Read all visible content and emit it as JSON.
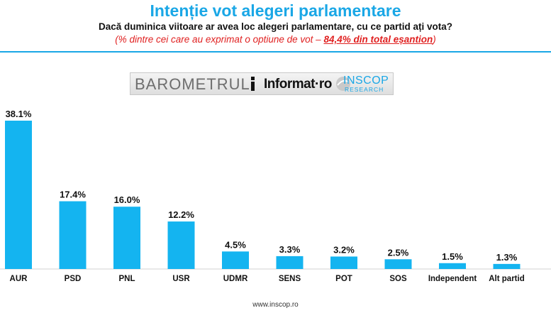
{
  "header": {
    "title": "Intenție vot alegeri parlamentare",
    "subtitle": "Dacă duminica viitoare ar avea loc alegeri parlamentare, cu ce partid ați vota?",
    "note_prefix": "(% dintre cei care au exprimat o optiune de vot – ",
    "note_emphasis": "84,4% din total eșantion",
    "note_suffix": ")"
  },
  "banner": {
    "barometru": "BAROMETRUL",
    "informat": "Informat·ro",
    "inscop_name": "INSCOP",
    "inscop_sub": "RESEARCH"
  },
  "footer": {
    "url": "www.inscop.ro"
  },
  "colors": {
    "accent": "#1aa7e6",
    "bar": "#14b4f0",
    "note": "#e02020"
  },
  "chart_data": {
    "type": "bar",
    "categories": [
      "AUR",
      "PSD",
      "PNL",
      "USR",
      "UDMR",
      "SENS",
      "POT",
      "SOS",
      "Independent",
      "Alt partid"
    ],
    "values": [
      38.1,
      17.4,
      16.0,
      12.2,
      4.5,
      3.3,
      3.2,
      2.5,
      1.5,
      1.3
    ],
    "value_labels": [
      "38.1%",
      "17.4%",
      "16.0%",
      "12.2%",
      "4.5%",
      "3.3%",
      "3.2%",
      "2.5%",
      "1.5%",
      "1.3%"
    ],
    "title": "",
    "xlabel": "",
    "ylabel": "",
    "ylim": [
      0,
      40
    ],
    "grid": false,
    "legend": "none"
  }
}
